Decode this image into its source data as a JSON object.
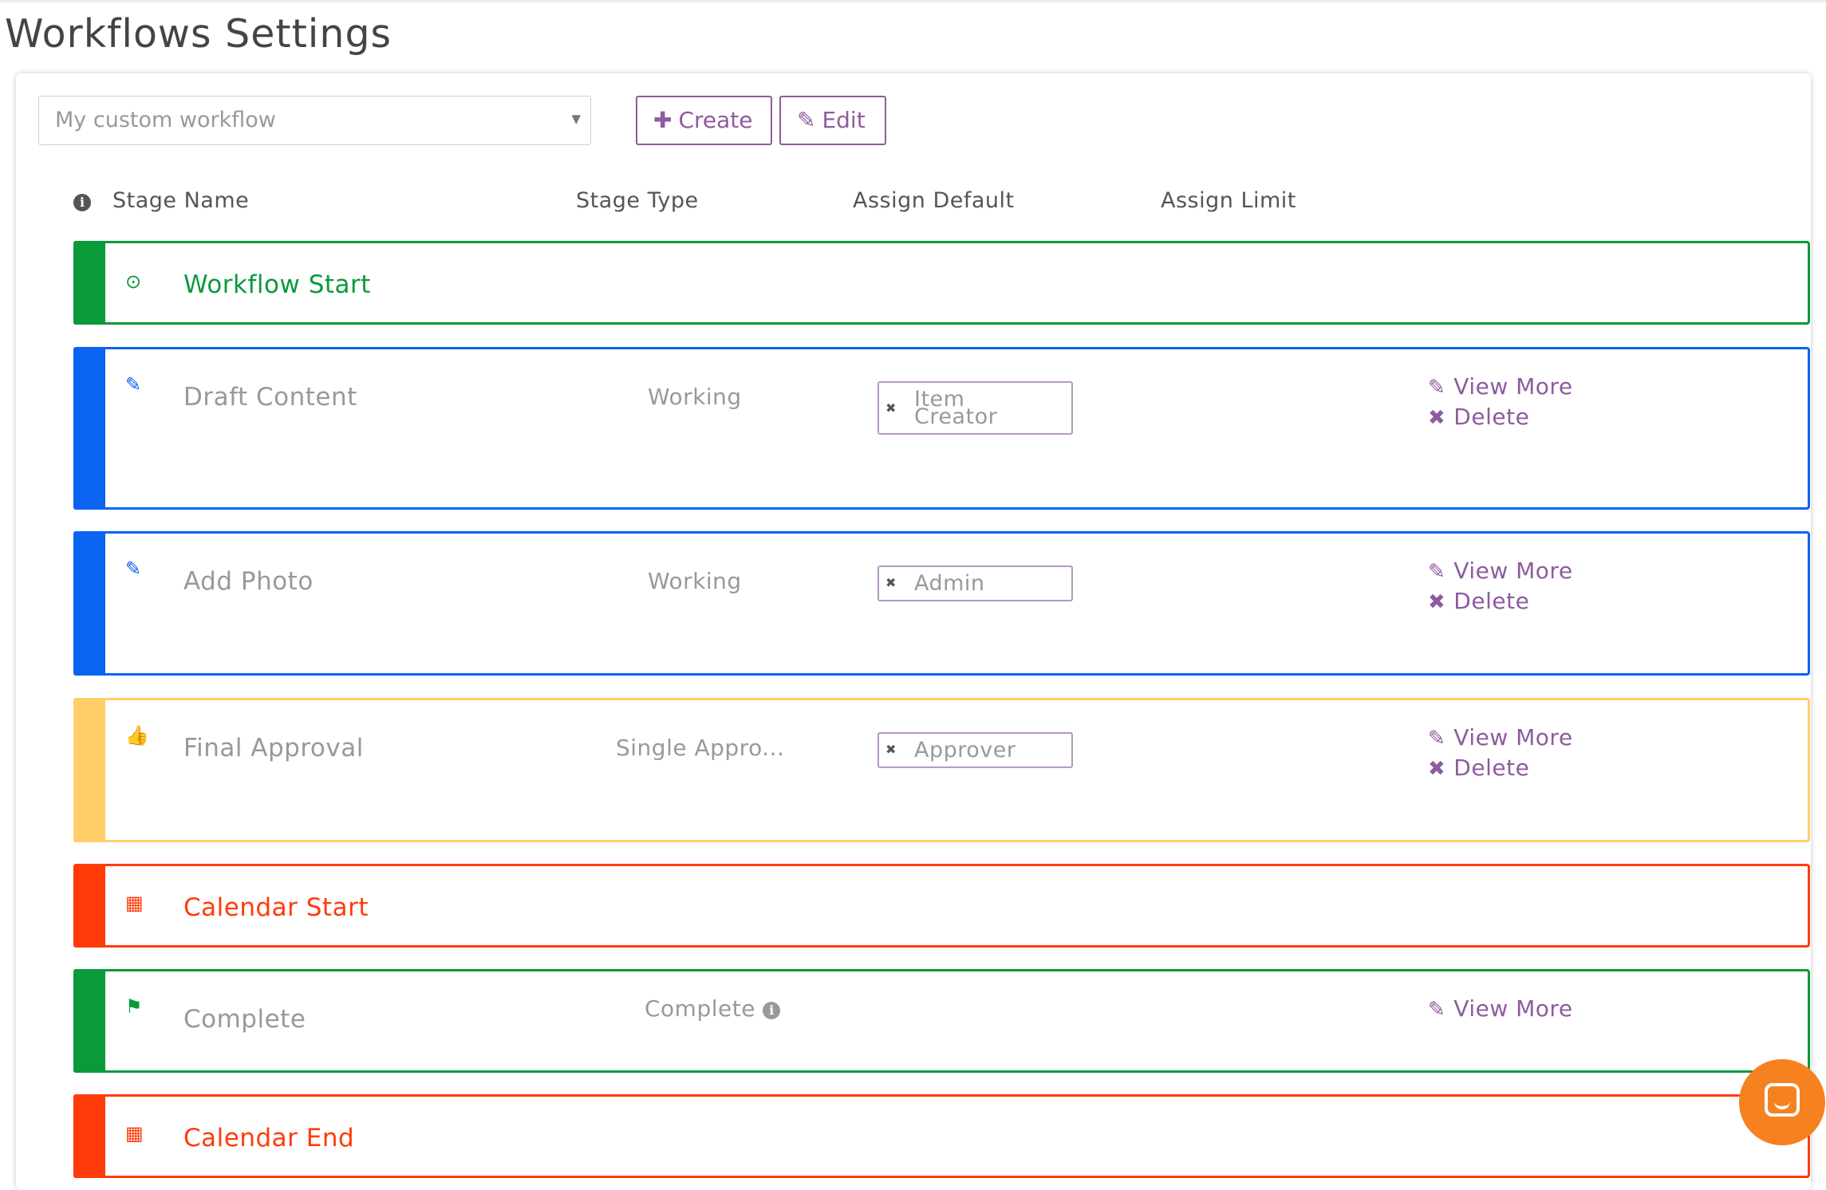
{
  "page": {
    "title": "Workflows Settings"
  },
  "toolbar": {
    "workflow_select": "My custom workflow",
    "create_label": "Create",
    "edit_label": "Edit"
  },
  "table_header": {
    "stage_name": "Stage Name",
    "stage_type": "Stage Type",
    "assign_default": "Assign Default",
    "assign_limit": "Assign Limit"
  },
  "stages": [
    {
      "name": "Workflow Start",
      "icon": "check-circle-icon",
      "color": "#0a9a3a"
    },
    {
      "name": "Draft Content",
      "type": "Working",
      "assign": "Item Creator",
      "icon": "pencil-icon",
      "color": "#0a64f0",
      "view_more": "View More",
      "delete": "Delete"
    },
    {
      "name": "Add Photo",
      "type": "Working",
      "assign": "Admin",
      "icon": "pencil-icon",
      "color": "#0a64f0",
      "view_more": "View More",
      "delete": "Delete"
    },
    {
      "name": "Final Approval",
      "type": "Single Appro...",
      "assign": "Approver",
      "icon": "thumbs-up-icon",
      "color": "#ffce69",
      "view_more": "View More",
      "delete": "Delete"
    },
    {
      "name": "Calendar Start",
      "icon": "calendar-icon",
      "color": "#ff3b0a"
    },
    {
      "name": "Complete",
      "type": "Complete",
      "icon": "flag-icon",
      "color": "#0a9a3a",
      "view_more": "View More"
    },
    {
      "name": "Calendar End",
      "icon": "calendar-icon",
      "color": "#ff3b0a"
    }
  ],
  "colors": {
    "accent": "#8e5b9e",
    "chat": "#f5821f"
  }
}
